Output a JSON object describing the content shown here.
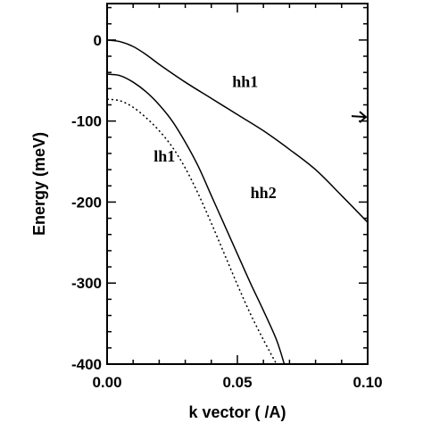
{
  "chart_data": {
    "type": "line",
    "xlabel": "k vector ( /A)",
    "ylabel": "Energy  (meV)",
    "xlim": [
      0.0,
      0.1
    ],
    "ylim": [
      -400,
      45
    ],
    "x_ticks": [
      {
        "value": 0.0,
        "label": "0.00"
      },
      {
        "value": 0.05,
        "label": "0.05"
      },
      {
        "value": 0.1,
        "label": "0.10"
      }
    ],
    "y_ticks": [
      {
        "value": 0,
        "label": "0"
      },
      {
        "value": -100,
        "label": "-100"
      },
      {
        "value": -200,
        "label": "-200"
      },
      {
        "value": -300,
        "label": "-300"
      },
      {
        "value": -400,
        "label": "-400"
      }
    ],
    "grid": false,
    "legend": "none",
    "series": [
      {
        "name": "hh1",
        "style": "solid",
        "x": [
          0.0,
          0.005,
          0.01,
          0.015,
          0.02,
          0.03,
          0.04,
          0.05,
          0.06,
          0.07,
          0.08,
          0.09,
          0.1
        ],
        "y": [
          0,
          -2,
          -8,
          -18,
          -30,
          -52,
          -72,
          -92,
          -112,
          -135,
          -160,
          -192,
          -225
        ]
      },
      {
        "name": "hh2",
        "style": "solid",
        "x": [
          0.0,
          0.005,
          0.01,
          0.015,
          0.02,
          0.025,
          0.03,
          0.035,
          0.04,
          0.045,
          0.05,
          0.055,
          0.06,
          0.065,
          0.068
        ],
        "y": [
          -42,
          -44,
          -52,
          -64,
          -80,
          -100,
          -126,
          -156,
          -192,
          -228,
          -264,
          -300,
          -334,
          -370,
          -400
        ]
      },
      {
        "name": "lh1",
        "style": "dotted",
        "x": [
          0.0,
          0.005,
          0.01,
          0.015,
          0.02,
          0.025,
          0.03,
          0.035,
          0.04,
          0.045,
          0.05,
          0.055,
          0.06,
          0.065
        ],
        "y": [
          -73,
          -75,
          -83,
          -96,
          -112,
          -132,
          -158,
          -190,
          -226,
          -264,
          -302,
          -338,
          -370,
          -400
        ]
      }
    ],
    "annotations": [
      {
        "text": "hh1",
        "x": 0.053,
        "y": -58
      },
      {
        "text": "lh1",
        "x": 0.022,
        "y": -150
      },
      {
        "text": "hh2",
        "x": 0.06,
        "y": -195
      },
      {
        "text": "",
        "type": "arrow",
        "x": 0.1,
        "y": -95
      }
    ]
  }
}
